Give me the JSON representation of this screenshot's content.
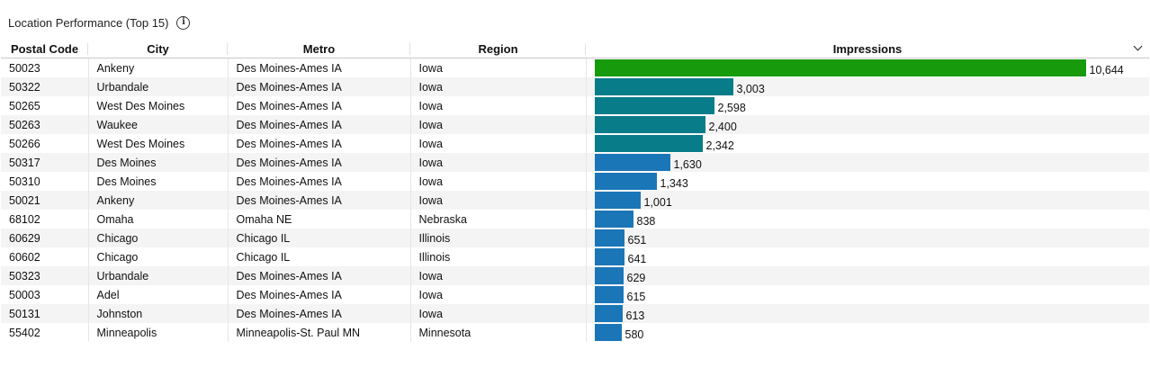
{
  "panel": {
    "title": "Location Performance (Top 15)",
    "info_icon": "info-icon"
  },
  "columns": {
    "postal_code": "Postal Code",
    "city": "City",
    "metro": "Metro",
    "region": "Region",
    "impressions": "Impressions"
  },
  "colors": {
    "top_bar": "#179a0b",
    "teal": "#097c8a",
    "blue": "#1b76b8"
  },
  "rows": [
    {
      "postal": "50023",
      "city": "Ankeny",
      "metro": "Des Moines-Ames IA",
      "region": "Iowa",
      "impressions": 10644,
      "label": "10,644"
    },
    {
      "postal": "50322",
      "city": "Urbandale",
      "metro": "Des Moines-Ames IA",
      "region": "Iowa",
      "impressions": 3003,
      "label": "3,003"
    },
    {
      "postal": "50265",
      "city": "West Des Moines",
      "metro": "Des Moines-Ames IA",
      "region": "Iowa",
      "impressions": 2598,
      "label": "2,598"
    },
    {
      "postal": "50263",
      "city": "Waukee",
      "metro": "Des Moines-Ames IA",
      "region": "Iowa",
      "impressions": 2400,
      "label": "2,400"
    },
    {
      "postal": "50266",
      "city": "West Des Moines",
      "metro": "Des Moines-Ames IA",
      "region": "Iowa",
      "impressions": 2342,
      "label": "2,342"
    },
    {
      "postal": "50317",
      "city": "Des Moines",
      "metro": "Des Moines-Ames IA",
      "region": "Iowa",
      "impressions": 1630,
      "label": "1,630"
    },
    {
      "postal": "50310",
      "city": "Des Moines",
      "metro": "Des Moines-Ames IA",
      "region": "Iowa",
      "impressions": 1343,
      "label": "1,343"
    },
    {
      "postal": "50021",
      "city": "Ankeny",
      "metro": "Des Moines-Ames IA",
      "region": "Iowa",
      "impressions": 1001,
      "label": "1,001"
    },
    {
      "postal": "68102",
      "city": "Omaha",
      "metro": "Omaha NE",
      "region": "Nebraska",
      "impressions": 838,
      "label": "838"
    },
    {
      "postal": "60629",
      "city": "Chicago",
      "metro": "Chicago IL",
      "region": "Illinois",
      "impressions": 651,
      "label": "651"
    },
    {
      "postal": "60602",
      "city": "Chicago",
      "metro": "Chicago IL",
      "region": "Illinois",
      "impressions": 641,
      "label": "641"
    },
    {
      "postal": "50323",
      "city": "Urbandale",
      "metro": "Des Moines-Ames IA",
      "region": "Iowa",
      "impressions": 629,
      "label": "629"
    },
    {
      "postal": "50003",
      "city": "Adel",
      "metro": "Des Moines-Ames IA",
      "region": "Iowa",
      "impressions": 615,
      "label": "615"
    },
    {
      "postal": "50131",
      "city": "Johnston",
      "metro": "Des Moines-Ames IA",
      "region": "Iowa",
      "impressions": 613,
      "label": "613"
    },
    {
      "postal": "55402",
      "city": "Minneapolis",
      "metro": "Minneapolis-St. Paul MN",
      "region": "Minnesota",
      "impressions": 580,
      "label": "580"
    }
  ]
}
